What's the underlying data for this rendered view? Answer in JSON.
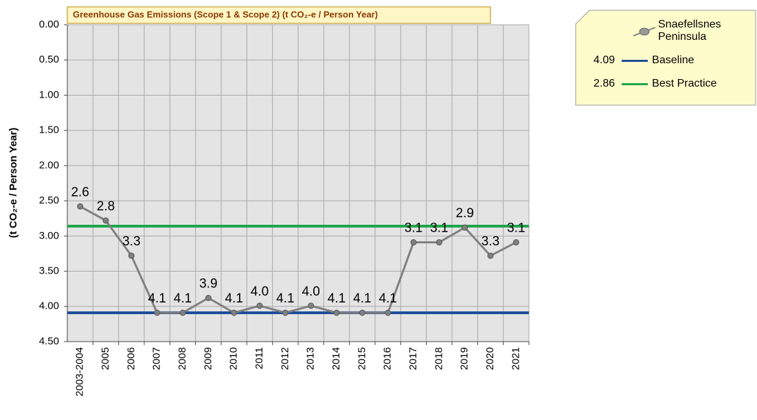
{
  "chart_data": {
    "type": "line",
    "title": "Greenhouse Gas Emissions (Scope 1 & Scope 2) (t CO₂-e / Person Year)",
    "y_label": "(t CO₂-e / Person Year)",
    "categories": [
      "2003-2004",
      "2005",
      "2006",
      "2007",
      "2008",
      "2009",
      "2010",
      "2011",
      "2012",
      "2013",
      "2014",
      "2015",
      "2016",
      "2017",
      "2018",
      "2019",
      "2020",
      "2021"
    ],
    "series": [
      {
        "name": "Snaefellsnes Peninsula",
        "color": "#808080",
        "values": [
          2.58,
          2.78,
          3.28,
          4.09,
          4.09,
          3.88,
          4.09,
          3.99,
          4.09,
          3.99,
          4.09,
          4.09,
          4.09,
          3.09,
          3.09,
          2.88,
          3.28,
          3.09
        ],
        "value_labels": [
          "2.6",
          "2.8",
          "3.3",
          "4.1",
          "4.1",
          "3.9",
          "4.1",
          "4.0",
          "4.1",
          "4.0",
          "4.1",
          "4.1",
          "4.1",
          "3.1",
          "3.1",
          "2.9",
          "3.3",
          "3.1"
        ]
      }
    ],
    "reference_lines": [
      {
        "name": "Baseline",
        "value": 4.09,
        "color": "#1f4e99"
      },
      {
        "name": "Best Practice",
        "value": 2.86,
        "color": "#1ea64a"
      }
    ],
    "ylim": [
      0,
      4.5
    ],
    "y_inverted": true,
    "yticks": [
      {
        "value": 0,
        "label": "0.00"
      },
      {
        "value": 0.5,
        "label": "0.50"
      },
      {
        "value": 1,
        "label": "1.00"
      },
      {
        "value": 1.5,
        "label": "1.50"
      },
      {
        "value": 2,
        "label": "2.00"
      },
      {
        "value": 2.5,
        "label": "2.50"
      },
      {
        "value": 3,
        "label": "3.00"
      },
      {
        "value": 3.5,
        "label": "3.50"
      },
      {
        "value": 4,
        "label": "4.00"
      },
      {
        "value": 4.5,
        "label": "4.50"
      }
    ],
    "grid": true
  }
}
